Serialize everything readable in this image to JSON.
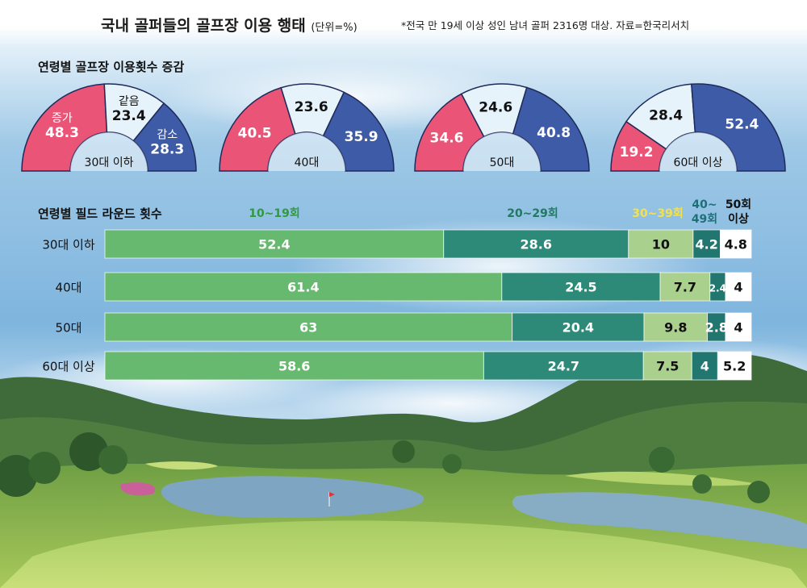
{
  "header": {
    "title": "국내 골퍼들의 골프장 이용 행태",
    "unit": "(단위=%)",
    "note": "*전국 만 19세 이상 성인 남녀 골퍼 2316명 대상. 자료=한국리서치"
  },
  "colors": {
    "increase": "#ea5577",
    "same": "#e6f3fa",
    "decrease": "#3e5ba8",
    "r10_19": "#66b96e",
    "r20_29": "#2e8a78",
    "r30_39": "#a9d08c",
    "r40_49": "#21776f",
    "r50": "#ffffff"
  },
  "chart_data": [
    {
      "type": "pie",
      "title": "연령별 골프장 이용횟수 증감",
      "style": "semicircle donut gauges",
      "categories": [
        "증가",
        "같음",
        "감소"
      ],
      "groups": [
        {
          "label": "30대 이하",
          "values": [
            48.3,
            23.4,
            28.3
          ],
          "show_category_labels": true
        },
        {
          "label": "40대",
          "values": [
            40.5,
            23.6,
            35.9
          ],
          "show_category_labels": false
        },
        {
          "label": "50대",
          "values": [
            34.6,
            24.6,
            40.8
          ],
          "show_category_labels": false
        },
        {
          "label": "60대 이상",
          "values": [
            19.2,
            28.4,
            52.4
          ],
          "show_category_labels": false
        }
      ]
    },
    {
      "type": "bar",
      "orientation": "horizontal",
      "stacked": true,
      "title": "연령별 필드 라운드 횟수",
      "categories": [
        "30대 이하",
        "40대",
        "50대",
        "60대 이상"
      ],
      "series": [
        {
          "name": "10~19회",
          "values": [
            52.4,
            61.4,
            63,
            58.6
          ],
          "color": "#66b96e",
          "header_color": "#2f9a3f"
        },
        {
          "name": "20~29회",
          "values": [
            28.6,
            24.5,
            20.4,
            24.7
          ],
          "color": "#2e8a78",
          "header_color": "#1f7a60"
        },
        {
          "name": "30~39회",
          "values": [
            10,
            7.7,
            9.8,
            7.5
          ],
          "color": "#a9d08c",
          "header_color": "#f4e24a"
        },
        {
          "name": "40~49회",
          "values": [
            4.2,
            2.4,
            2.8,
            4
          ],
          "color": "#21776f",
          "header_color": "#1f6f78"
        },
        {
          "name": "50회 이상",
          "values": [
            4.8,
            4,
            4,
            5.2
          ],
          "color": "#ffffff",
          "header_color": "#111111"
        }
      ],
      "xlim": [
        0,
        100
      ]
    }
  ]
}
